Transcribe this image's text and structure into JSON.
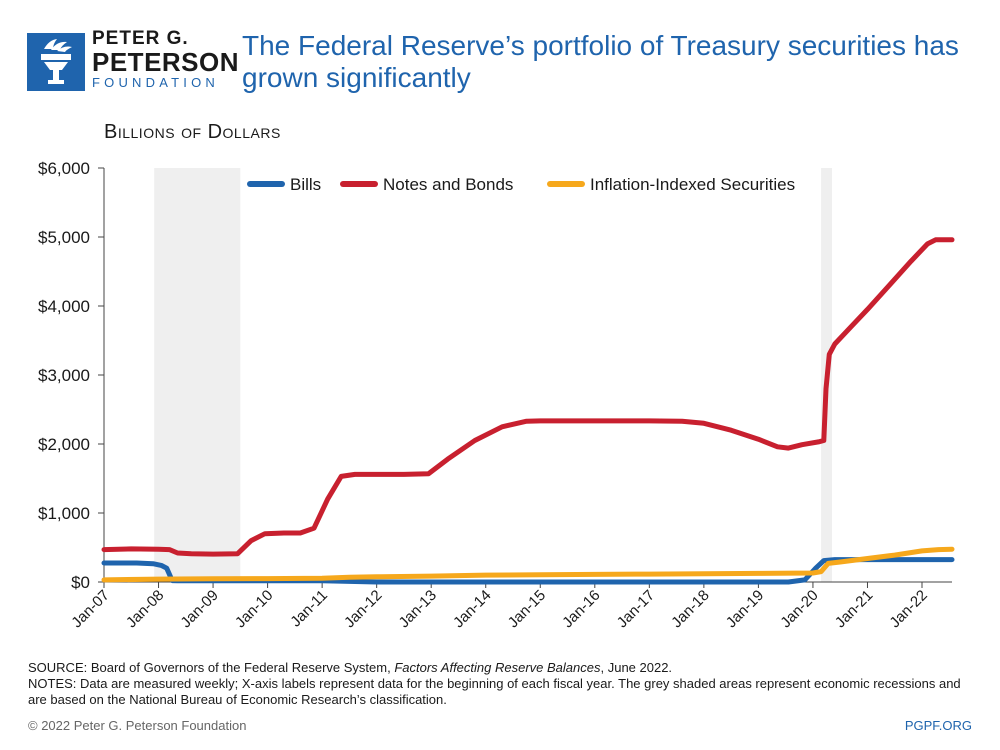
{
  "brand": {
    "line1": "PETER G.",
    "line2": "PETERSON",
    "line3": "FOUNDATION",
    "color": "#1f64ad"
  },
  "header": {
    "title": "The Federal Reserve’s portfolio of Treasury securities has grown significantly",
    "units": "Billions of Dollars"
  },
  "footer": {
    "source_prefix": "SOURCE: Board of Governors of the Federal Reserve System, ",
    "source_italic": "Factors Affecting Reserve Balances",
    "source_suffix": ", June 2022.",
    "notes": "NOTES: Data are measured weekly; X-axis labels represent data for the beginning of each fiscal year. The grey shaded areas represent economic recessions and are based on the National Bureau of Economic Research’s classification.",
    "copyright": "© 2022 Peter G. Peterson Foundation",
    "site": "PGPF.ORG"
  },
  "chart_data": {
    "type": "line",
    "ylim": [
      0,
      6000
    ],
    "yticks": [
      0,
      1000,
      2000,
      3000,
      4000,
      5000,
      6000
    ],
    "ytick_labels": [
      "$0",
      "$1,000",
      "$2,000",
      "$3,000",
      "$4,000",
      "$5,000",
      "$6,000"
    ],
    "xlim": [
      2007.0,
      2022.55
    ],
    "xticks": [
      2007,
      2008,
      2009,
      2010,
      2011,
      2012,
      2013,
      2014,
      2015,
      2016,
      2017,
      2018,
      2019,
      2020,
      2021,
      2022
    ],
    "xtick_labels": [
      "Jan-07",
      "Jan-08",
      "Jan-09",
      "Jan-10",
      "Jan-11",
      "Jan-12",
      "Jan-13",
      "Jan-14",
      "Jan-15",
      "Jan-16",
      "Jan-17",
      "Jan-18",
      "Jan-19",
      "Jan-20",
      "Jan-21",
      "Jan-22"
    ],
    "recessions": [
      [
        2007.92,
        2009.5
      ],
      [
        2020.15,
        2020.35
      ]
    ],
    "legend_position": "top-center",
    "series": [
      {
        "name": "Bills",
        "color": "#1f64ad",
        "points": [
          [
            2007.0,
            275
          ],
          [
            2007.6,
            275
          ],
          [
            2007.9,
            265
          ],
          [
            2008.05,
            240
          ],
          [
            2008.15,
            200
          ],
          [
            2008.25,
            20
          ],
          [
            2008.35,
            18
          ],
          [
            2009.0,
            18
          ],
          [
            2010.0,
            18
          ],
          [
            2011.0,
            18
          ],
          [
            2012.0,
            0
          ],
          [
            2013.0,
            0
          ],
          [
            2014.0,
            0
          ],
          [
            2015.0,
            0
          ],
          [
            2016.0,
            0
          ],
          [
            2017.0,
            0
          ],
          [
            2018.0,
            0
          ],
          [
            2019.0,
            0
          ],
          [
            2019.55,
            0
          ],
          [
            2019.85,
            30
          ],
          [
            2020.05,
            200
          ],
          [
            2020.2,
            310
          ],
          [
            2020.4,
            325
          ],
          [
            2021.0,
            325
          ],
          [
            2022.0,
            325
          ],
          [
            2022.55,
            325
          ]
        ]
      },
      {
        "name": "Notes and Bonds",
        "color": "#c8202f",
        "points": [
          [
            2007.0,
            470
          ],
          [
            2007.5,
            480
          ],
          [
            2008.0,
            475
          ],
          [
            2008.2,
            470
          ],
          [
            2008.35,
            420
          ],
          [
            2008.6,
            410
          ],
          [
            2009.0,
            405
          ],
          [
            2009.45,
            410
          ],
          [
            2009.7,
            600
          ],
          [
            2009.95,
            700
          ],
          [
            2010.3,
            710
          ],
          [
            2010.6,
            710
          ],
          [
            2010.85,
            780
          ],
          [
            2011.1,
            1200
          ],
          [
            2011.35,
            1530
          ],
          [
            2011.6,
            1560
          ],
          [
            2012.0,
            1560
          ],
          [
            2012.5,
            1560
          ],
          [
            2012.95,
            1570
          ],
          [
            2013.3,
            1780
          ],
          [
            2013.8,
            2050
          ],
          [
            2014.3,
            2250
          ],
          [
            2014.75,
            2330
          ],
          [
            2015.0,
            2335
          ],
          [
            2016.0,
            2335
          ],
          [
            2017.0,
            2335
          ],
          [
            2017.6,
            2330
          ],
          [
            2018.0,
            2300
          ],
          [
            2018.5,
            2200
          ],
          [
            2019.0,
            2070
          ],
          [
            2019.35,
            1960
          ],
          [
            2019.55,
            1940
          ],
          [
            2019.8,
            1990
          ],
          [
            2020.1,
            2030
          ],
          [
            2020.2,
            2050
          ],
          [
            2020.24,
            2800
          ],
          [
            2020.3,
            3300
          ],
          [
            2020.4,
            3450
          ],
          [
            2020.7,
            3700
          ],
          [
            2021.0,
            3950
          ],
          [
            2021.4,
            4300
          ],
          [
            2021.8,
            4650
          ],
          [
            2022.1,
            4900
          ],
          [
            2022.25,
            4960
          ],
          [
            2022.55,
            4960
          ]
        ]
      },
      {
        "name": "Inflation-Indexed Securities",
        "color": "#f6a81c",
        "points": [
          [
            2007.0,
            30
          ],
          [
            2008.0,
            42
          ],
          [
            2009.0,
            48
          ],
          [
            2010.0,
            50
          ],
          [
            2011.0,
            55
          ],
          [
            2011.5,
            70
          ],
          [
            2012.0,
            75
          ],
          [
            2013.0,
            85
          ],
          [
            2014.0,
            100
          ],
          [
            2015.0,
            105
          ],
          [
            2016.0,
            110
          ],
          [
            2017.0,
            115
          ],
          [
            2018.0,
            120
          ],
          [
            2019.0,
            125
          ],
          [
            2020.0,
            130
          ],
          [
            2020.15,
            150
          ],
          [
            2020.28,
            270
          ],
          [
            2020.5,
            290
          ],
          [
            2021.0,
            340
          ],
          [
            2021.5,
            390
          ],
          [
            2022.0,
            450
          ],
          [
            2022.3,
            470
          ],
          [
            2022.55,
            475
          ]
        ]
      }
    ]
  }
}
